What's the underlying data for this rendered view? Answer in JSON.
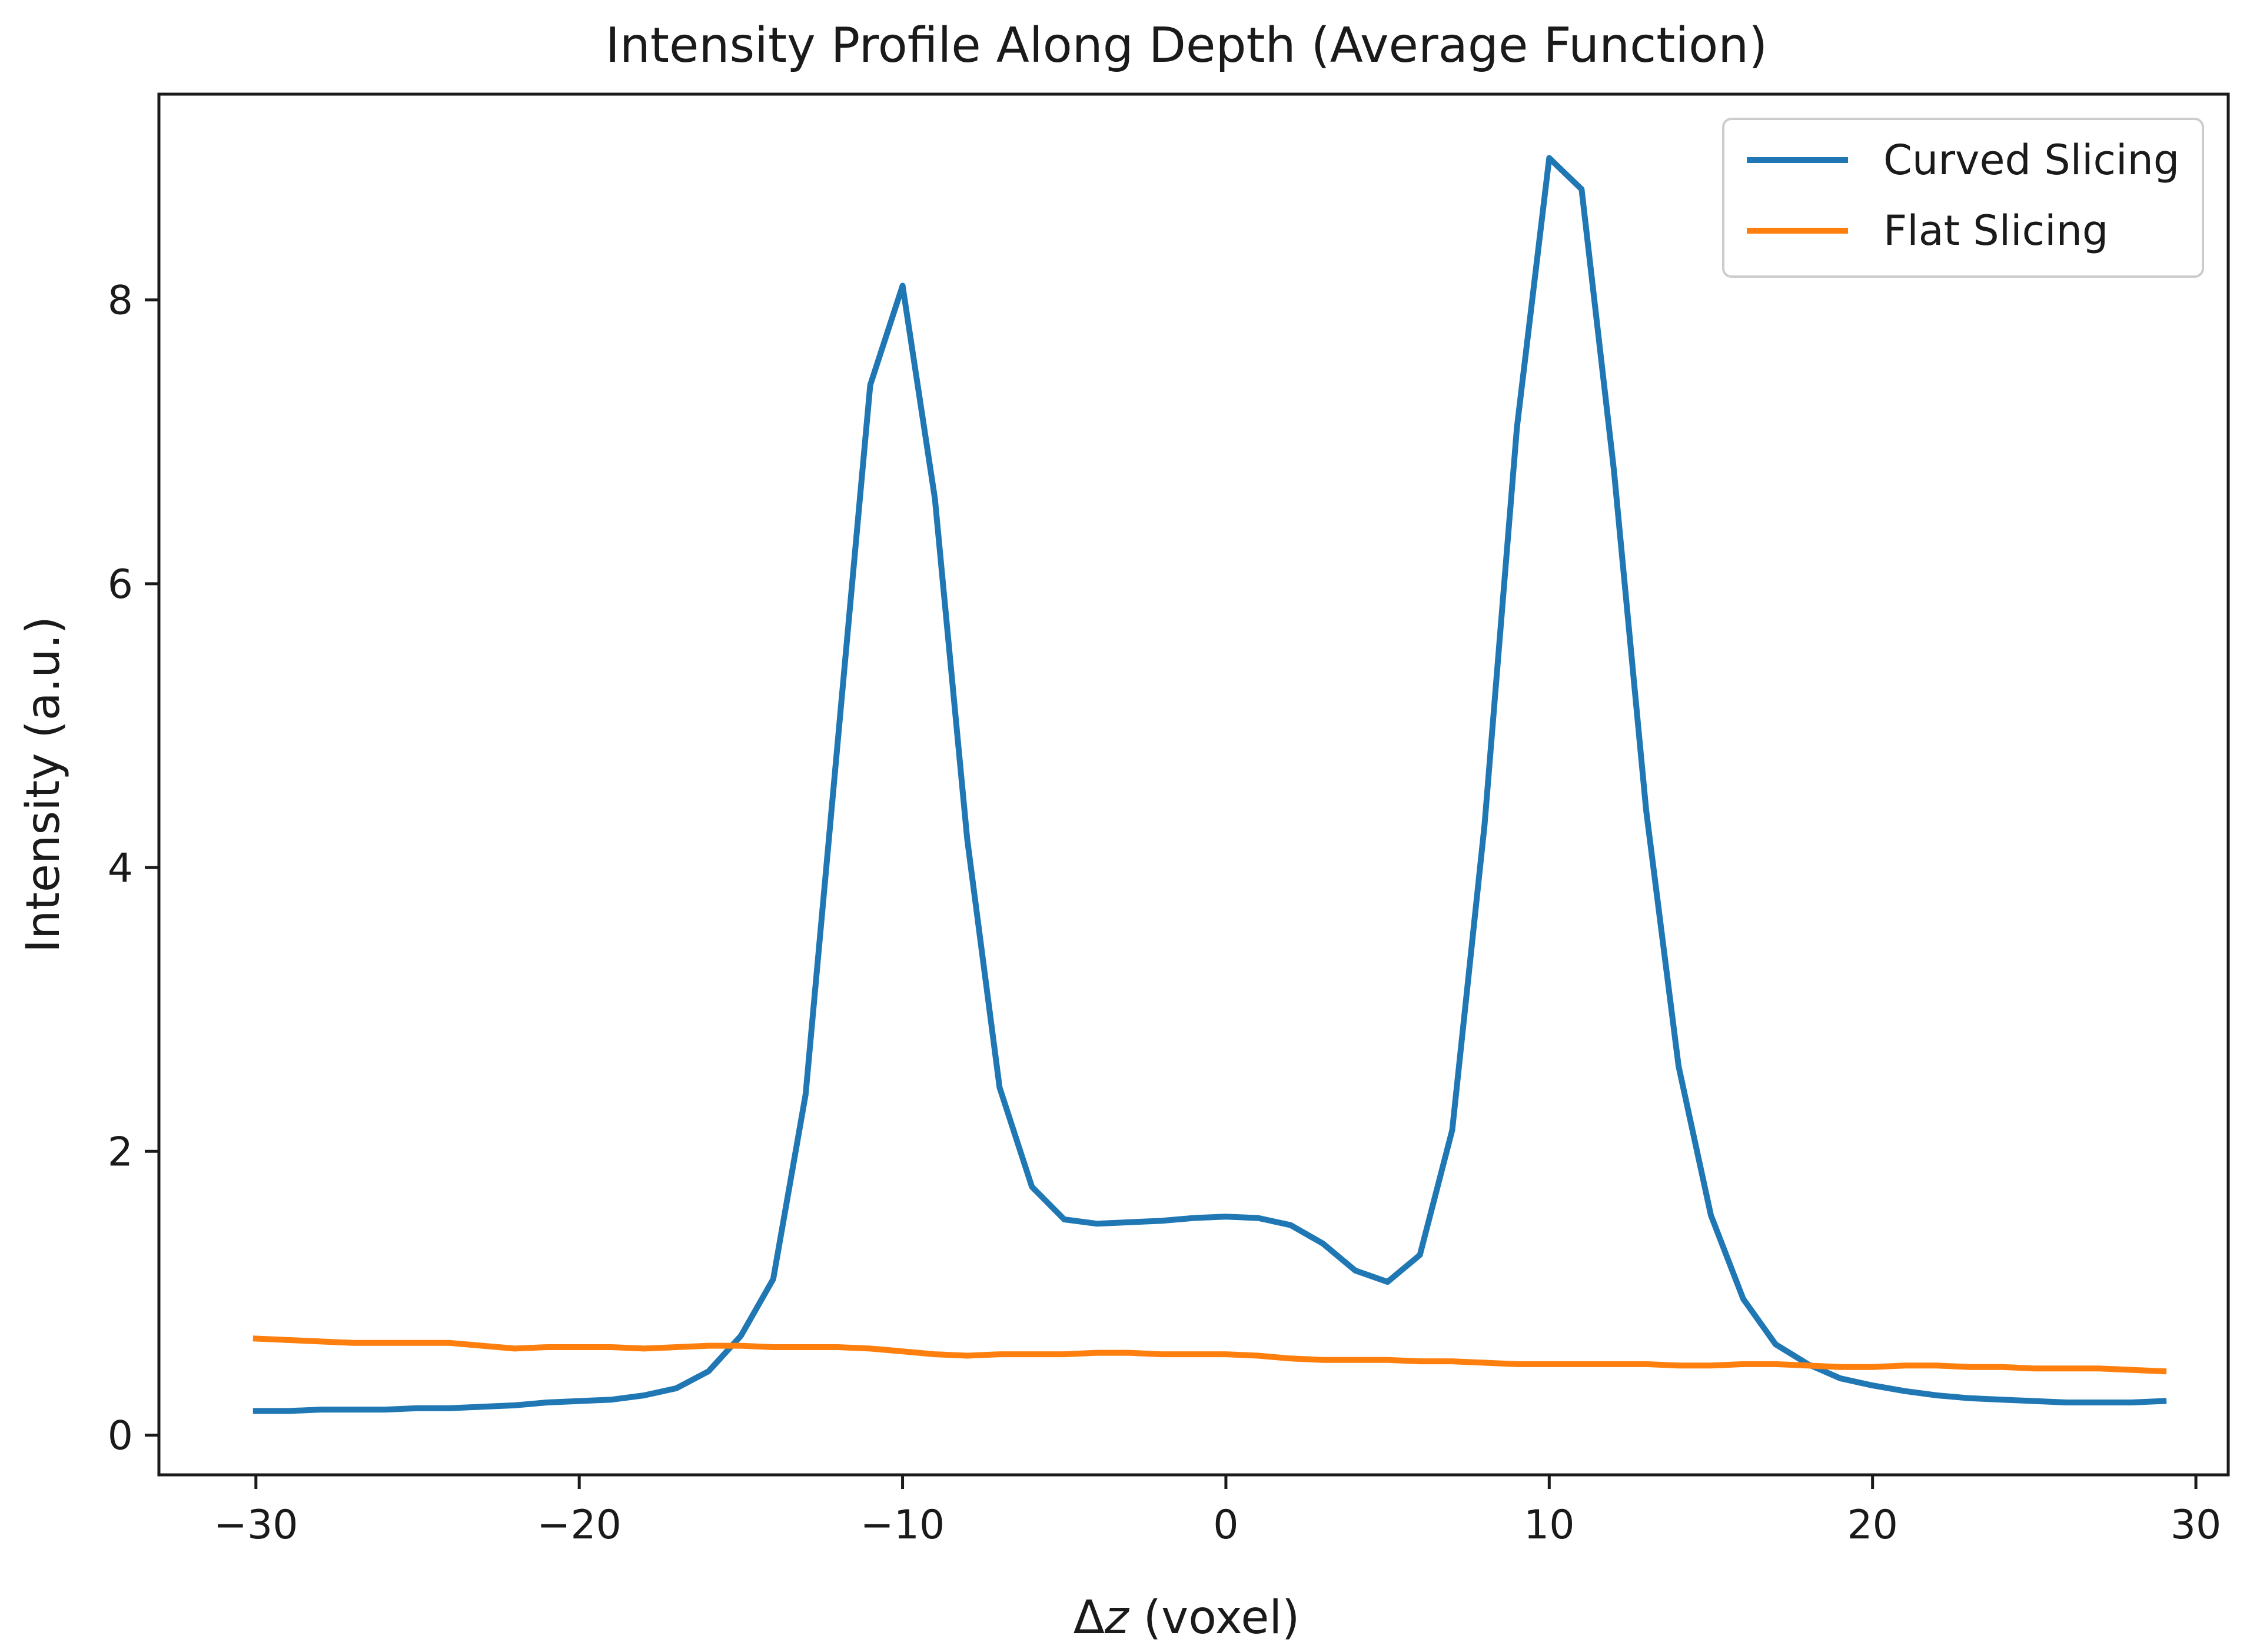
{
  "chart_data": {
    "type": "line",
    "title": "Intensity Profile Along Depth (Average Function)",
    "xlabel_prefix": "Δ",
    "xlabel_var": "z",
    "xlabel_suffix": " (voxel)",
    "ylabel": "Intensity (a.u.)",
    "xlim": [
      -33,
      31
    ],
    "ylim": [
      -0.28,
      9.45
    ],
    "xticks": [
      -30,
      -20,
      -10,
      0,
      10,
      20,
      30
    ],
    "xtick_labels": [
      "−30",
      "−20",
      "−10",
      "0",
      "10",
      "20",
      "30"
    ],
    "yticks": [
      0,
      2,
      4,
      6,
      8
    ],
    "ytick_labels": [
      "0",
      "2",
      "4",
      "6",
      "8"
    ],
    "legend_position": "top-right",
    "x": [
      -30,
      -29,
      -28,
      -27,
      -26,
      -25,
      -24,
      -23,
      -22,
      -21,
      -20,
      -19,
      -18,
      -17,
      -16,
      -15,
      -14,
      -13,
      -12,
      -11,
      -10,
      -9,
      -8,
      -7,
      -6,
      -5,
      -4,
      -3,
      -2,
      -1,
      0,
      1,
      2,
      3,
      4,
      5,
      6,
      7,
      8,
      9,
      10,
      11,
      12,
      13,
      14,
      15,
      16,
      17,
      18,
      19,
      20,
      21,
      22,
      23,
      24,
      25,
      26,
      27,
      28,
      29
    ],
    "series": [
      {
        "name": "Curved Slicing",
        "color": "#1f77b4",
        "values": [
          0.17,
          0.17,
          0.18,
          0.18,
          0.18,
          0.19,
          0.19,
          0.2,
          0.21,
          0.23,
          0.24,
          0.25,
          0.28,
          0.33,
          0.45,
          0.7,
          1.1,
          2.4,
          4.9,
          7.4,
          8.1,
          6.6,
          4.2,
          2.45,
          1.75,
          1.52,
          1.49,
          1.5,
          1.51,
          1.53,
          1.54,
          1.53,
          1.48,
          1.35,
          1.16,
          1.08,
          1.27,
          2.15,
          4.3,
          7.1,
          9.0,
          8.78,
          6.8,
          4.4,
          2.6,
          1.55,
          0.96,
          0.64,
          0.5,
          0.4,
          0.35,
          0.31,
          0.28,
          0.26,
          0.25,
          0.24,
          0.23,
          0.23,
          0.23,
          0.24
        ]
      },
      {
        "name": "Flat Slicing",
        "color": "#ff7f0e",
        "values": [
          0.68,
          0.67,
          0.66,
          0.65,
          0.65,
          0.65,
          0.65,
          0.63,
          0.61,
          0.62,
          0.62,
          0.62,
          0.61,
          0.62,
          0.63,
          0.63,
          0.62,
          0.62,
          0.62,
          0.61,
          0.59,
          0.57,
          0.56,
          0.57,
          0.57,
          0.57,
          0.58,
          0.58,
          0.57,
          0.57,
          0.57,
          0.56,
          0.54,
          0.53,
          0.53,
          0.53,
          0.52,
          0.52,
          0.51,
          0.5,
          0.5,
          0.5,
          0.5,
          0.5,
          0.49,
          0.49,
          0.5,
          0.5,
          0.49,
          0.48,
          0.48,
          0.49,
          0.49,
          0.48,
          0.48,
          0.47,
          0.47,
          0.47,
          0.46,
          0.45
        ]
      }
    ]
  }
}
